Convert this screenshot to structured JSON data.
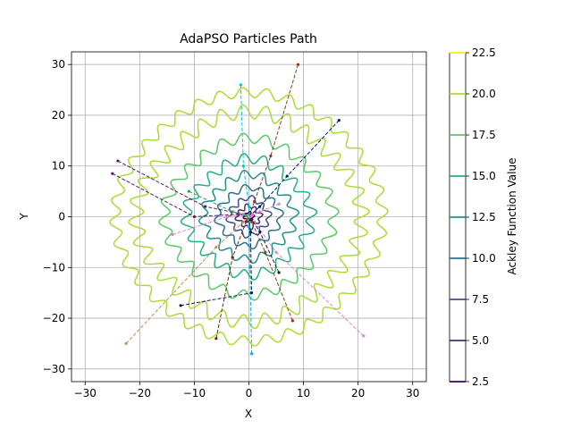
{
  "chart_data": {
    "type": "contour",
    "title": "AdaPSO Particles Path",
    "xlabel": "X",
    "ylabel": "Y",
    "xlim": [
      -32.5,
      32.5
    ],
    "ylim": [
      -32.5,
      32.5
    ],
    "xticks": [
      -30,
      -20,
      -10,
      0,
      10,
      20,
      30
    ],
    "yticks": [
      -30,
      -20,
      -10,
      0,
      10,
      20,
      30
    ],
    "xtick_labels": [
      "−30",
      "−20",
      "−10",
      "0",
      "10",
      "20",
      "30"
    ],
    "ytick_labels": [
      "−30",
      "−20",
      "−10",
      "0",
      "10",
      "20",
      "30"
    ],
    "grid": true,
    "colorbar": {
      "label": "Ackley Function Value",
      "range": [
        2.5,
        22.5
      ],
      "levels": [
        2.5,
        5.0,
        7.5,
        10.0,
        12.5,
        15.0,
        17.5,
        20.0,
        22.5
      ],
      "level_labels": [
        "2.5",
        "5.0",
        "7.5",
        "10.0",
        "12.5",
        "15.0",
        "17.5",
        "20.0",
        "22.5"
      ],
      "colors": [
        "#440154",
        "#472c7a",
        "#3b518b",
        "#2c718e",
        "#21908d",
        "#27ad81",
        "#5cc863",
        "#aadc32",
        "#fde725"
      ]
    },
    "contour_rings": [
      {
        "level": 20.0,
        "radius": 20,
        "wobble": 1.4,
        "lobes": 32,
        "color": "#aadc32"
      },
      {
        "level": 20.0,
        "radius": 24,
        "wobble": 1.0,
        "lobes": 36,
        "color": "#aadc32"
      },
      {
        "level": 17.5,
        "radius": 15,
        "wobble": 1.0,
        "lobes": 24,
        "color": "#5cc863"
      },
      {
        "level": 15.0,
        "radius": 11,
        "wobble": 1.0,
        "lobes": 20,
        "color": "#27ad81"
      },
      {
        "level": 12.5,
        "radius": 8,
        "wobble": 0.8,
        "lobes": 16,
        "color": "#21908d"
      },
      {
        "level": 10.0,
        "radius": 5.5,
        "wobble": 0.6,
        "lobes": 12,
        "color": "#2c718e"
      },
      {
        "level": 7.5,
        "radius": 3.5,
        "wobble": 0.5,
        "lobes": 10,
        "color": "#3b518b"
      },
      {
        "level": 5.0,
        "radius": 2.0,
        "wobble": 0.4,
        "lobes": 8,
        "color": "#472c7a"
      },
      {
        "level": 2.5,
        "radius": 0.8,
        "wobble": 0.2,
        "lobes": 6,
        "color": "#440154"
      }
    ],
    "particle_paths": [
      {
        "color": "#8c3a1a",
        "points": [
          [
            9,
            30
          ],
          [
            4,
            12
          ],
          [
            1,
            3
          ],
          [
            0,
            0
          ]
        ]
      },
      {
        "color": "#0b1a66",
        "points": [
          [
            16.5,
            19
          ],
          [
            7,
            8
          ],
          [
            2,
            2
          ],
          [
            0,
            0
          ]
        ]
      },
      {
        "color": "#00c8d0",
        "points": [
          [
            -1.5,
            26
          ],
          [
            -1,
            10
          ],
          [
            0,
            2
          ],
          [
            0,
            0
          ]
        ]
      },
      {
        "color": "#5a1a6e",
        "points": [
          [
            -25,
            8.5
          ],
          [
            -10,
            0
          ],
          [
            -2,
            0.5
          ],
          [
            0,
            0
          ]
        ]
      },
      {
        "color": "#5a1a6e",
        "points": [
          [
            -24,
            11
          ],
          [
            -8,
            2
          ],
          [
            -1,
            0.5
          ],
          [
            0,
            0
          ]
        ]
      },
      {
        "color": "#c09050",
        "points": [
          [
            -22.5,
            -25
          ],
          [
            -6,
            -6
          ],
          [
            -1,
            -1
          ],
          [
            0,
            0
          ]
        ]
      },
      {
        "color": "#e080c8",
        "points": [
          [
            21,
            -23.5
          ],
          [
            5,
            -7
          ],
          [
            1,
            -1
          ],
          [
            0,
            0
          ]
        ]
      },
      {
        "color": "#6b2a0e",
        "points": [
          [
            -6,
            -24
          ],
          [
            -3,
            -8
          ],
          [
            -0.5,
            -1
          ],
          [
            0,
            0
          ]
        ]
      },
      {
        "color": "#8c3a1a",
        "points": [
          [
            8,
            -20.5
          ],
          [
            3,
            -7
          ],
          [
            0.5,
            -1
          ],
          [
            0,
            0
          ]
        ]
      },
      {
        "color": "#00b0e0",
        "points": [
          [
            0.5,
            -27
          ],
          [
            0.2,
            -10
          ],
          [
            0,
            -2
          ],
          [
            0,
            0
          ]
        ]
      },
      {
        "color": "#1a1a4a",
        "points": [
          [
            -12.5,
            -17.5
          ],
          [
            0.5,
            -15
          ],
          [
            0.3,
            -3
          ],
          [
            0,
            0
          ]
        ]
      },
      {
        "color": "#e080c8",
        "points": [
          [
            -14,
            -3.5
          ],
          [
            -4,
            0
          ],
          [
            -1,
            0.5
          ],
          [
            0,
            0
          ]
        ]
      },
      {
        "color": "#30a060",
        "points": [
          [
            -11,
            5
          ],
          [
            -3,
            1
          ],
          [
            -0.5,
            0.2
          ],
          [
            0,
            0
          ]
        ]
      },
      {
        "color": "#1a1a4a",
        "points": [
          [
            5.5,
            -11
          ],
          [
            2,
            -3
          ],
          [
            0.5,
            -0.5
          ],
          [
            0,
            0
          ]
        ]
      },
      {
        "color": "#e080c8",
        "points": [
          [
            5.5,
            2.5
          ],
          [
            2,
            1
          ],
          [
            0.5,
            0.2
          ],
          [
            0,
            0
          ]
        ]
      }
    ]
  }
}
